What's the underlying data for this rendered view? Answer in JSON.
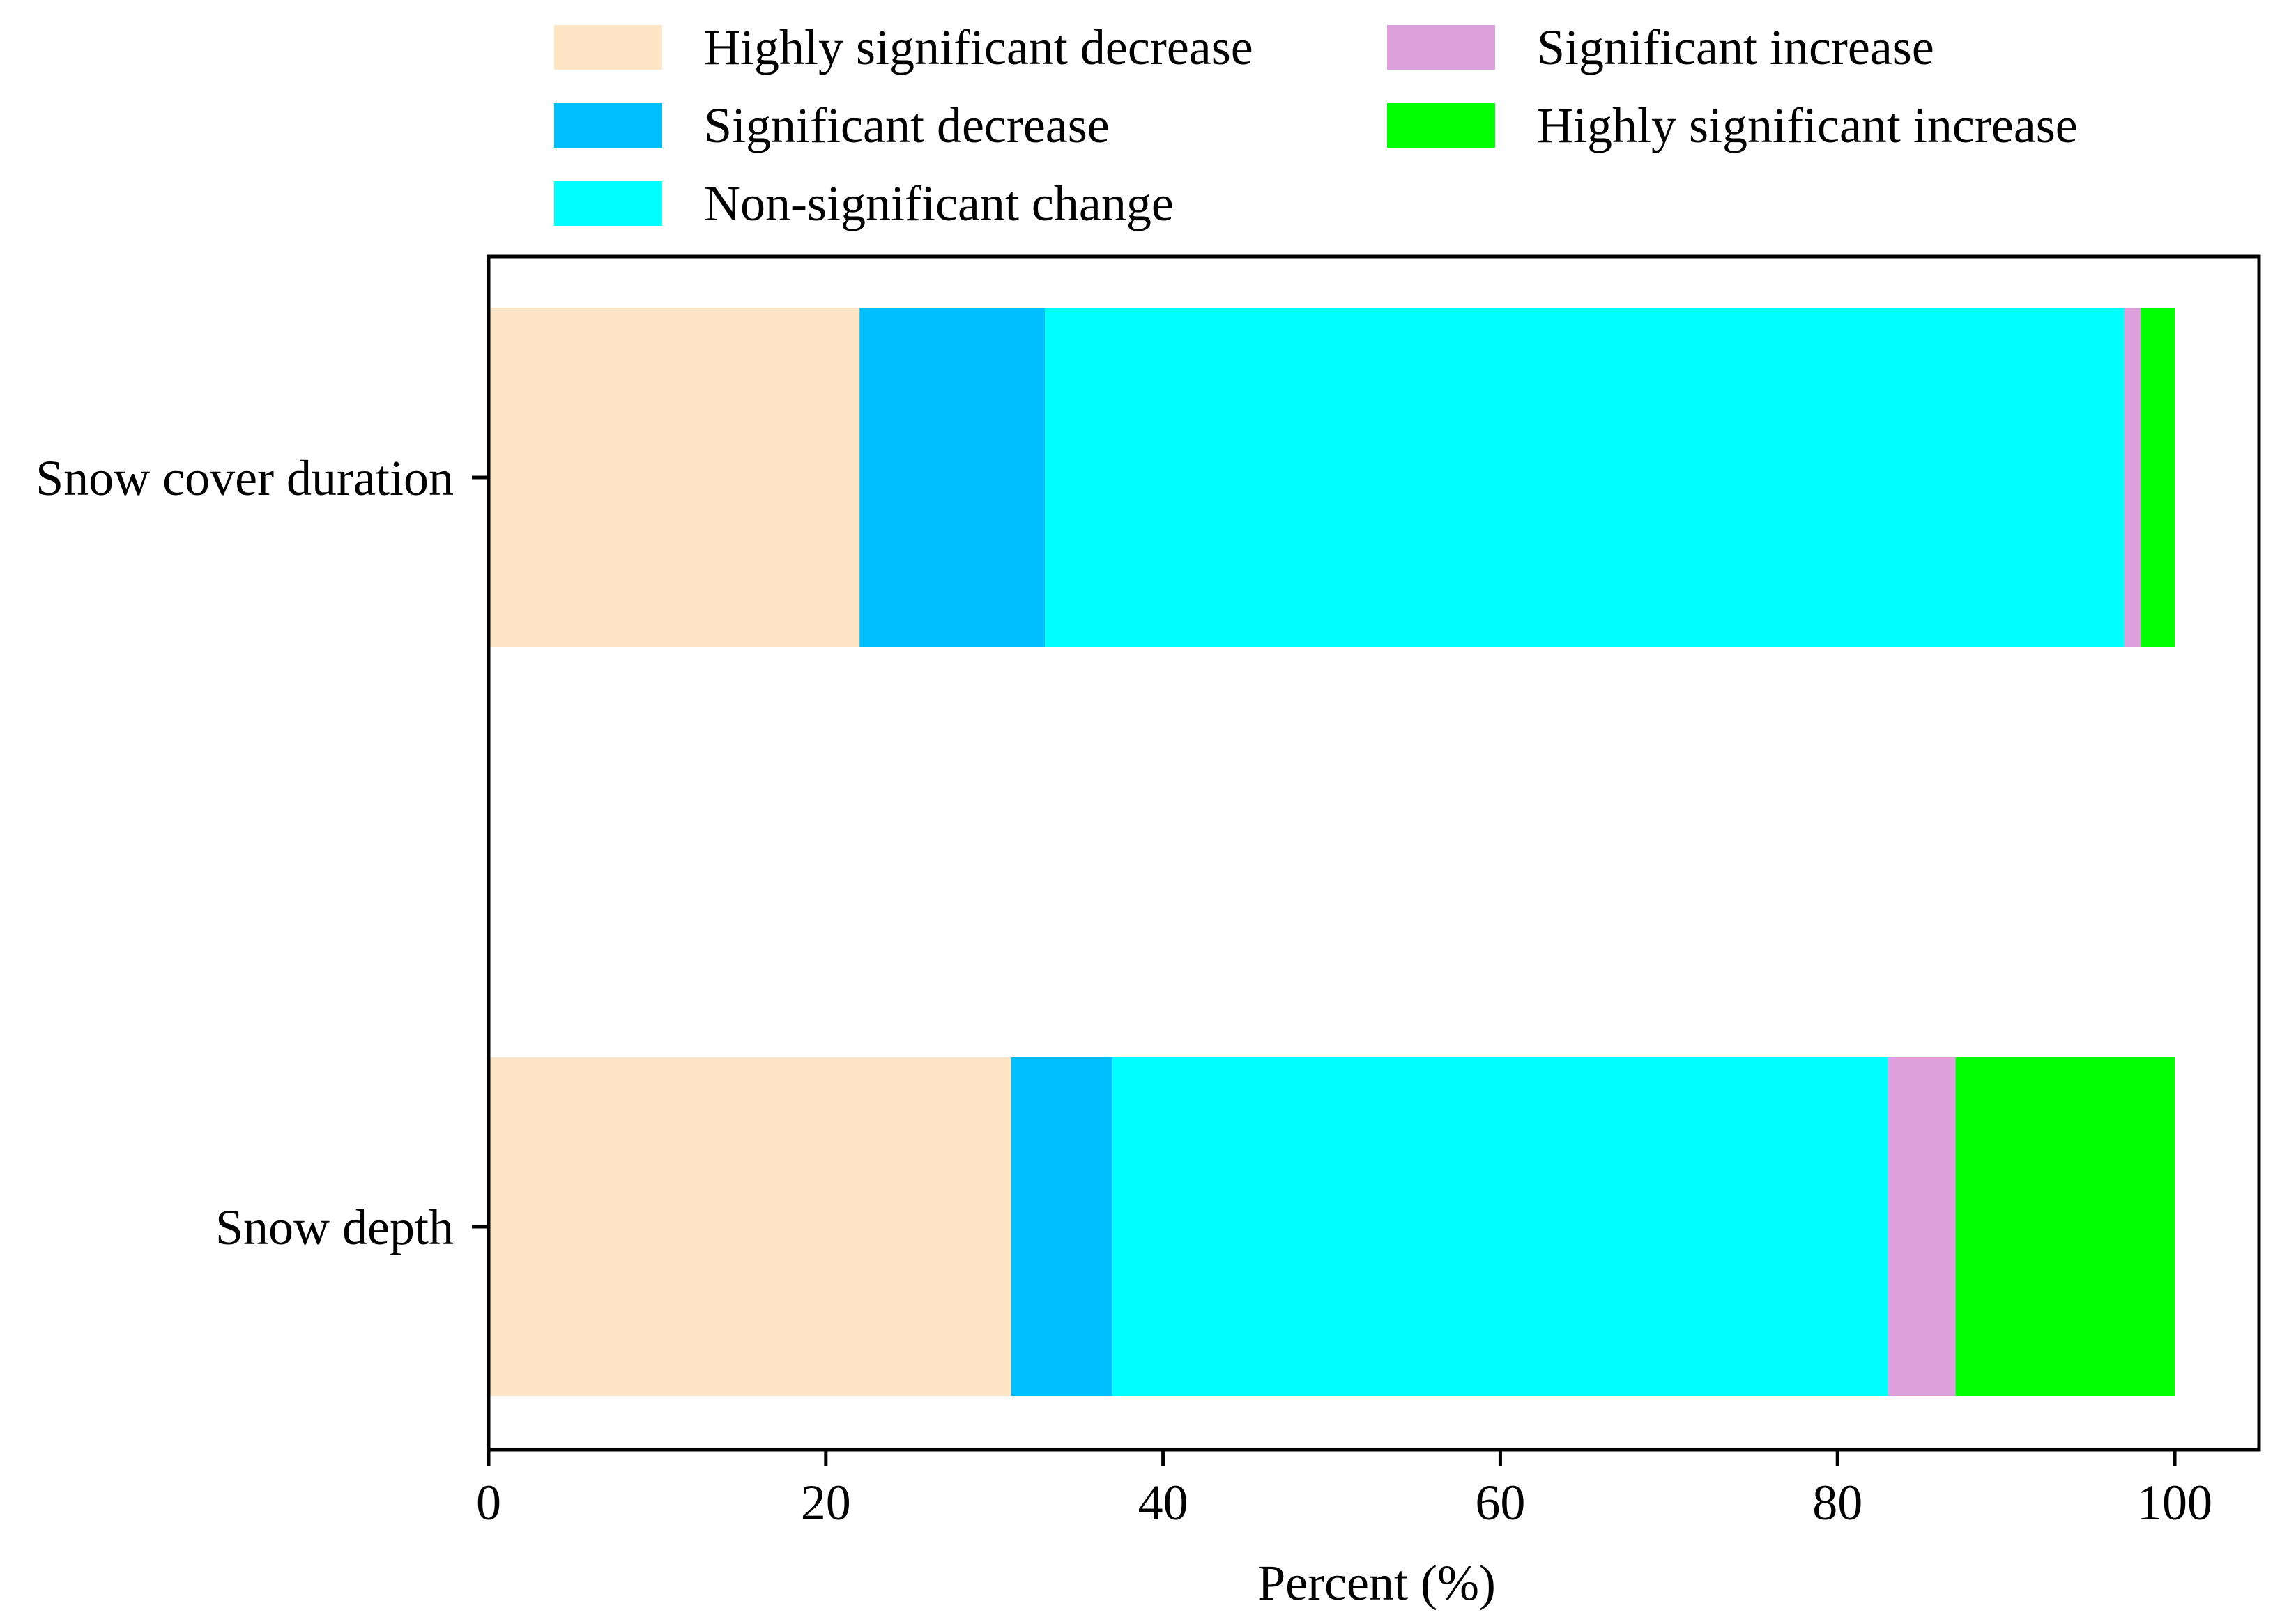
{
  "chart_data": {
    "type": "bar",
    "orientation": "horizontal",
    "stacked": true,
    "title": "",
    "xlabel": "Percent (%)",
    "ylabel": "",
    "xlim": [
      0,
      105
    ],
    "xticks": [
      "0",
      "20",
      "40",
      "60",
      "80",
      "100"
    ],
    "categories": [
      "Snow cover duration",
      "Snow depth"
    ],
    "series": [
      {
        "name": "Highly significant decrease",
        "color": "#FCE4C4",
        "values": [
          22,
          31
        ]
      },
      {
        "name": "Significant decrease",
        "color": "#00BFFF",
        "values": [
          11,
          6
        ]
      },
      {
        "name": "Non-significant change",
        "color": "#00FFFF",
        "values": [
          64,
          46
        ]
      },
      {
        "name": "Significant increase",
        "color": "#DDA0DD",
        "values": [
          1,
          4
        ]
      },
      {
        "name": "Highly significant increase",
        "color": "#00FF00",
        "values": [
          2,
          13
        ]
      }
    ],
    "legend_position": "top",
    "grid": false
  }
}
